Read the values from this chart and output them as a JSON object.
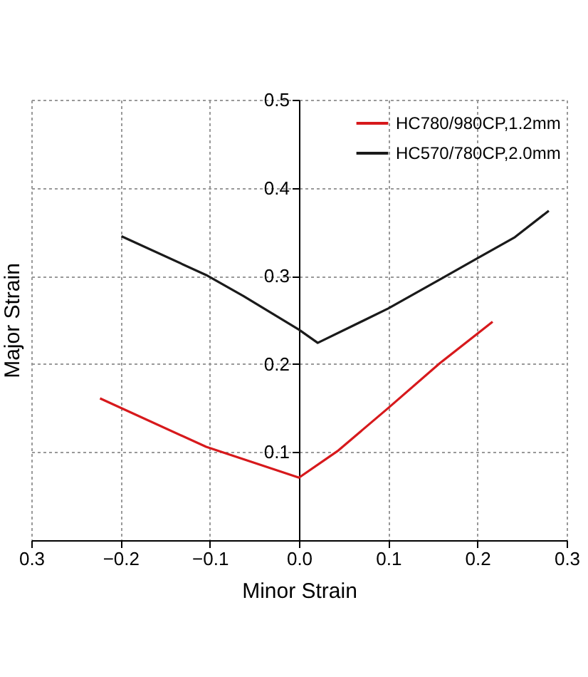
{
  "chart_data": {
    "type": "line",
    "xlabel": "Minor Strain",
    "ylabel": "Major Strain",
    "xlim": [
      -0.3,
      0.3
    ],
    "ylim": [
      0,
      0.5
    ],
    "xticks": [
      {
        "value": -0.3,
        "label": "0.3"
      },
      -0.2,
      -0.1,
      {
        "value": 0,
        "label": "0.0"
      },
      0.1,
      0.2,
      0.3
    ],
    "yticks": [
      0.1,
      0.2,
      0.3,
      0.4,
      0.5
    ],
    "grid": true,
    "legend": "top right",
    "marker": "none",
    "line_style": "solid",
    "series": [
      {
        "name": "HC780/980CP,1.2mm",
        "color": "#d7191c",
        "x": [
          -0.223,
          -0.104,
          0,
          0.043,
          0.1,
          0.158,
          0.217
        ],
        "values": [
          0.161,
          0.106,
          0.071,
          0.101,
          0.15,
          0.201,
          0.248
        ]
      },
      {
        "name": "HC570/780CP,2.0mm",
        "color": "#1a1a1a",
        "x": [
          -0.199,
          -0.104,
          -0.062,
          0,
          0.021,
          0.1,
          0.158,
          0.2,
          0.242,
          0.28
        ],
        "values": [
          0.345,
          0.301,
          0.277,
          0.239,
          0.224,
          0.263,
          0.296,
          0.32,
          0.344,
          0.374
        ]
      }
    ]
  }
}
